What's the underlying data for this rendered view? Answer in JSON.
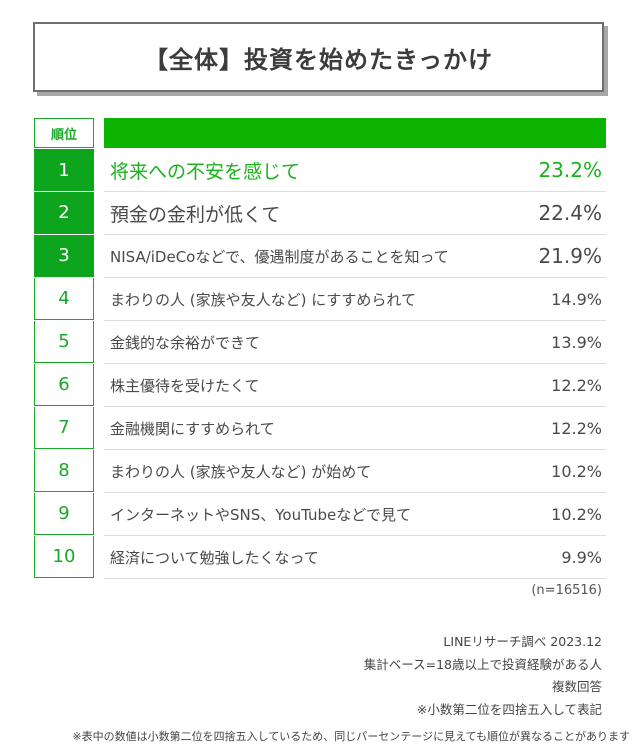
{
  "title": "【全体】投資を始めたきっかけ",
  "rank_header": "順位",
  "colors": {
    "accent": "#0cb400",
    "rank_fill": "#0ea51e",
    "highlight_text": "#1bb31b"
  },
  "chart_data": {
    "type": "table",
    "title": "【全体】投資を始めたきっかけ",
    "columns": [
      "順位",
      "",
      ""
    ],
    "rows": [
      {
        "rank": "1",
        "label": "将来への不安を感じて",
        "value": "23.2%",
        "pct": 23.2
      },
      {
        "rank": "2",
        "label": "預金の金利が低くて",
        "value": "22.4%",
        "pct": 22.4
      },
      {
        "rank": "3",
        "label": "NISA/iDeCoなどで、優遇制度があることを知って",
        "value": "21.9%",
        "pct": 21.9
      },
      {
        "rank": "4",
        "label": "まわりの人 (家族や友人など) にすすめられて",
        "value": "14.9%",
        "pct": 14.9
      },
      {
        "rank": "5",
        "label": "金銭的な余裕ができて",
        "value": "13.9%",
        "pct": 13.9
      },
      {
        "rank": "6",
        "label": "株主優待を受けたくて",
        "value": "12.2%",
        "pct": 12.2
      },
      {
        "rank": "7",
        "label": "金融機関にすすめられて",
        "value": "12.2%",
        "pct": 12.2
      },
      {
        "rank": "8",
        "label": "まわりの人 (家族や友人など) が始めて",
        "value": "10.2%",
        "pct": 10.2
      },
      {
        "rank": "9",
        "label": "インターネットやSNS、YouTubeなどで見て",
        "value": "10.2%",
        "pct": 10.2
      },
      {
        "rank": "10",
        "label": "経済について勉強したくなって",
        "value": "9.9%",
        "pct": 9.9
      }
    ]
  },
  "sample_size": "(n=16516)",
  "notes": [
    "LINEリサーチ調べ 2023.12",
    "集計ベース=18歳以上で投資経験がある人",
    "複数回答",
    "※小数第二位を四捨五入して表記"
  ],
  "footnote": "※表中の数値は小数第二位を四捨五入しているため、同じパーセンテージに見えても順位が異なることがあります"
}
